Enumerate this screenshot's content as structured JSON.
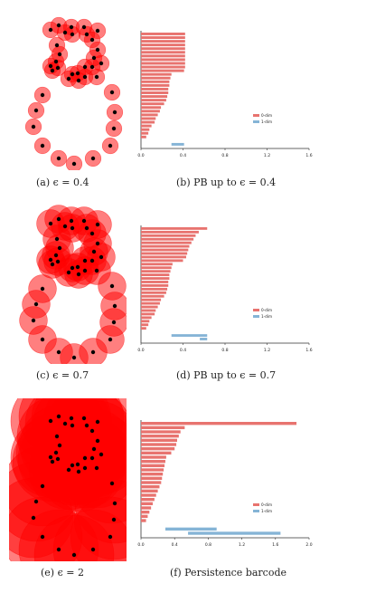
{
  "colors": {
    "disk": "#ff0000",
    "point": "#000000",
    "bar0": "#e8736f",
    "bar1": "#85b4d6"
  },
  "captions": [
    "(a) ϵ = 0.4",
    "(b) PB up to ϵ = 0.4",
    "(c) ϵ = 0.7",
    "(d) PB up to ϵ = 0.7",
    "(e) ϵ = 2",
    "(f) Persistence barcode"
  ],
  "legend": {
    "dim0": "0-dim",
    "dim1": "1-dim"
  },
  "points": [
    [
      46,
      25
    ],
    [
      55,
      20
    ],
    [
      69,
      22
    ],
    [
      83,
      22
    ],
    [
      98,
      26
    ],
    [
      62,
      28
    ],
    [
      70,
      30
    ],
    [
      86,
      30
    ],
    [
      92,
      36
    ],
    [
      53,
      42
    ],
    [
      98,
      47
    ],
    [
      56,
      52
    ],
    [
      94,
      56
    ],
    [
      52,
      60
    ],
    [
      46,
      65
    ],
    [
      54,
      67
    ],
    [
      48,
      70
    ],
    [
      84,
      66
    ],
    [
      92,
      66
    ],
    [
      102,
      62
    ],
    [
      70,
      74
    ],
    [
      76,
      73
    ],
    [
      66,
      79
    ],
    [
      84,
      77
    ],
    [
      97,
      77
    ],
    [
      77,
      81
    ],
    [
      37,
      97
    ],
    [
      114,
      94
    ],
    [
      30,
      114
    ],
    [
      117,
      116
    ],
    [
      27,
      132
    ],
    [
      116,
      134
    ],
    [
      37,
      153
    ],
    [
      112,
      153
    ],
    [
      55,
      167
    ],
    [
      93,
      167
    ],
    [
      72,
      173
    ]
  ],
  "point_scale": 1.0,
  "chart_data": [
    {
      "type": "barcode",
      "epsilon": 0.4,
      "xlim": [
        0,
        1.6
      ],
      "xticks": [
        "0.0",
        "0.4",
        "0.8",
        "1.2",
        "1.6"
      ],
      "legend_placement": "right",
      "series": [
        {
          "name": "0-dim",
          "intervals": [
            [
              0,
              0.42
            ],
            [
              0,
              0.42
            ],
            [
              0,
              0.42
            ],
            [
              0,
              0.42
            ],
            [
              0,
              0.42
            ],
            [
              0,
              0.42
            ],
            [
              0,
              0.42
            ],
            [
              0,
              0.42
            ],
            [
              0,
              0.42
            ],
            [
              0,
              0.42
            ],
            [
              0,
              0.41
            ],
            [
              0,
              0.29
            ],
            [
              0,
              0.28
            ],
            [
              0,
              0.27
            ],
            [
              0,
              0.27
            ],
            [
              0,
              0.26
            ],
            [
              0,
              0.26
            ],
            [
              0,
              0.25
            ],
            [
              0,
              0.24
            ],
            [
              0,
              0.22
            ],
            [
              0,
              0.19
            ],
            [
              0,
              0.18
            ],
            [
              0,
              0.16
            ],
            [
              0,
              0.14
            ],
            [
              0,
              0.13
            ],
            [
              0,
              0.1
            ],
            [
              0,
              0.08
            ],
            [
              0,
              0.07
            ],
            [
              0,
              0.05
            ]
          ]
        },
        {
          "name": "1-dim",
          "intervals": [
            [
              0.29,
              0.41
            ]
          ]
        }
      ]
    },
    {
      "type": "barcode",
      "epsilon": 0.7,
      "xlim": [
        0,
        1.6
      ],
      "xticks": [
        "0.0",
        "0.4",
        "0.8",
        "1.2",
        "1.6"
      ],
      "legend_placement": "right",
      "series": [
        {
          "name": "0-dim",
          "intervals": [
            [
              0,
              0.63
            ],
            [
              0,
              0.55
            ],
            [
              0,
              0.52
            ],
            [
              0,
              0.5
            ],
            [
              0,
              0.48
            ],
            [
              0,
              0.46
            ],
            [
              0,
              0.45
            ],
            [
              0,
              0.44
            ],
            [
              0,
              0.43
            ],
            [
              0,
              0.4
            ],
            [
              0,
              0.3
            ],
            [
              0,
              0.29
            ],
            [
              0,
              0.28
            ],
            [
              0,
              0.27
            ],
            [
              0,
              0.27
            ],
            [
              0,
              0.26
            ],
            [
              0,
              0.26
            ],
            [
              0,
              0.25
            ],
            [
              0,
              0.24
            ],
            [
              0,
              0.22
            ],
            [
              0,
              0.19
            ],
            [
              0,
              0.18
            ],
            [
              0,
              0.16
            ],
            [
              0,
              0.14
            ],
            [
              0,
              0.13
            ],
            [
              0,
              0.1
            ],
            [
              0,
              0.08
            ],
            [
              0,
              0.07
            ],
            [
              0,
              0.05
            ]
          ]
        },
        {
          "name": "1-dim",
          "intervals": [
            [
              0.29,
              0.63
            ],
            [
              0.56,
              0.63
            ]
          ]
        }
      ]
    },
    {
      "type": "barcode",
      "epsilon": 2,
      "xlim": [
        0,
        2.0
      ],
      "xticks": [
        "0.0",
        "0.4",
        "0.8",
        "1.2",
        "1.6",
        "2.0"
      ],
      "legend_placement": "right",
      "series": [
        {
          "name": "0-dim",
          "intervals": [
            [
              0,
              1.85
            ],
            [
              0,
              0.52
            ],
            [
              0,
              0.47
            ],
            [
              0,
              0.45
            ],
            [
              0,
              0.43
            ],
            [
              0,
              0.42
            ],
            [
              0,
              0.4
            ],
            [
              0,
              0.36
            ],
            [
              0,
              0.3
            ],
            [
              0,
              0.29
            ],
            [
              0,
              0.28
            ],
            [
              0,
              0.27
            ],
            [
              0,
              0.26
            ],
            [
              0,
              0.25
            ],
            [
              0,
              0.24
            ],
            [
              0,
              0.22
            ],
            [
              0,
              0.2
            ],
            [
              0,
              0.18
            ],
            [
              0,
              0.16
            ],
            [
              0,
              0.14
            ],
            [
              0,
              0.12
            ],
            [
              0,
              0.1
            ],
            [
              0,
              0.08
            ],
            [
              0,
              0.06
            ]
          ]
        },
        {
          "name": "1-dim",
          "intervals": [
            [
              0.29,
              0.9
            ],
            [
              0.56,
              1.66
            ]
          ]
        }
      ]
    }
  ]
}
